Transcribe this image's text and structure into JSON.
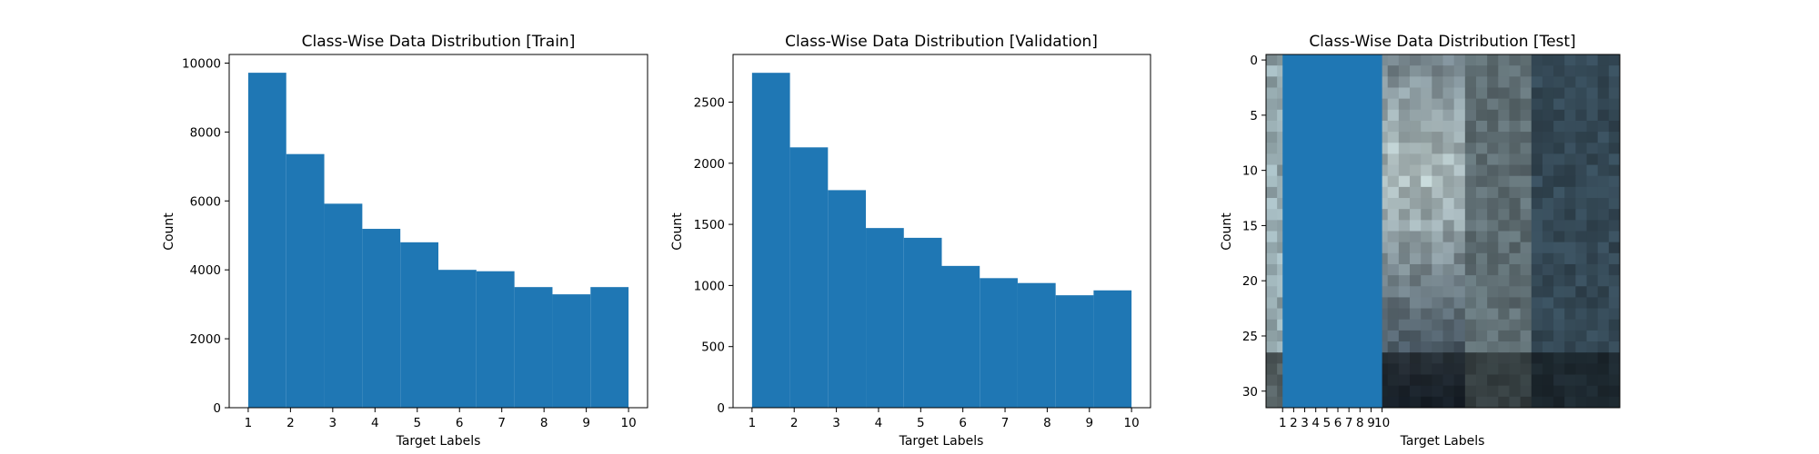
{
  "chart_data": [
    {
      "type": "bar",
      "title": "Class-Wise Data Distribution [Train]",
      "xlabel": "Target Labels",
      "ylabel": "Count",
      "xlim": [
        0.55,
        10.45
      ],
      "ylim": [
        0,
        10250
      ],
      "xticks": [
        1,
        2,
        3,
        4,
        5,
        6,
        7,
        8,
        9,
        10
      ],
      "yticks": [
        0,
        2000,
        4000,
        6000,
        8000,
        10000
      ],
      "bin_edges": [
        1.0,
        1.9,
        2.8,
        3.7,
        4.6,
        5.5,
        6.4,
        7.3,
        8.2,
        9.1,
        10.0
      ],
      "values": [
        9720,
        7360,
        5920,
        5190,
        4800,
        4000,
        3960,
        3500,
        3290,
        3500
      ],
      "color": "#1f77b4"
    },
    {
      "type": "bar",
      "title": "Class-Wise Data Distribution [Validation]",
      "xlabel": "Target Labels",
      "ylabel": "Count",
      "xlim": [
        0.55,
        10.45
      ],
      "ylim": [
        0,
        2890
      ],
      "xticks": [
        1,
        2,
        3,
        4,
        5,
        6,
        7,
        8,
        9,
        10
      ],
      "yticks": [
        0,
        500,
        1000,
        1500,
        2000,
        2500
      ],
      "bin_edges": [
        1.0,
        1.9,
        2.8,
        3.7,
        4.6,
        5.5,
        6.4,
        7.3,
        8.2,
        9.1,
        10.0
      ],
      "values": [
        2740,
        2130,
        1780,
        1470,
        1390,
        1160,
        1060,
        1020,
        920,
        960
      ],
      "color": "#1f77b4"
    },
    {
      "type": "heatmap",
      "title": "Class-Wise Data Distribution [Test]",
      "xlabel": "Target Labels",
      "ylabel": "Count",
      "xlim": [
        -0.5,
        31.5
      ],
      "ylim": [
        31.5,
        -0.5
      ],
      "xticks": [
        1,
        2,
        3,
        4,
        5,
        6,
        7,
        8,
        9,
        10
      ],
      "yticks": [
        0,
        5,
        10,
        15,
        20,
        25,
        30
      ],
      "overlay_bar": {
        "x_from": 1,
        "x_to": 10,
        "color": "#1f77b4"
      }
    }
  ]
}
